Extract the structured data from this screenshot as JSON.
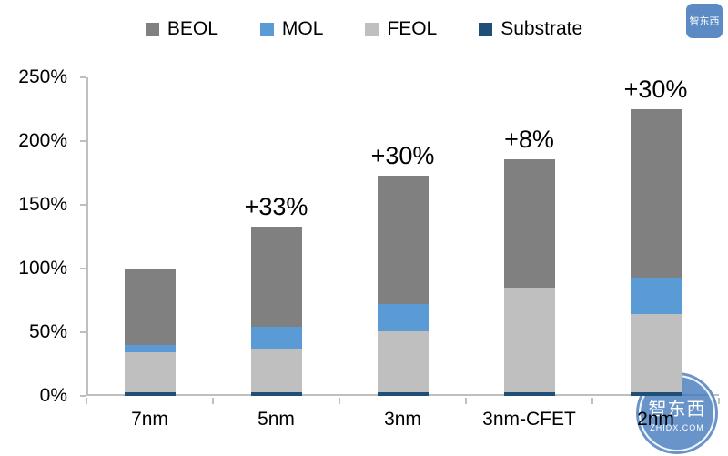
{
  "legend": {
    "items": [
      {
        "label": "BEOL",
        "series": "BEOL"
      },
      {
        "label": "MOL",
        "series": "MOL"
      },
      {
        "label": "FEOL",
        "series": "FEOL"
      },
      {
        "label": "Substrate",
        "series": "Substrate"
      }
    ]
  },
  "chart_data": {
    "type": "bar",
    "stacked": true,
    "title": "",
    "xlabel": "",
    "ylabel": "",
    "ylim": [
      0,
      250
    ],
    "grid": false,
    "legend_position": "top",
    "axis_color": "#bfbfbf",
    "y_ticks": [
      {
        "label": "0%",
        "value": 0
      },
      {
        "label": "50%",
        "value": 50
      },
      {
        "label": "100%",
        "value": 100
      },
      {
        "label": "150%",
        "value": 150
      },
      {
        "label": "200%",
        "value": 200
      },
      {
        "label": "250%",
        "value": 250
      }
    ],
    "categories": [
      "7nm",
      "5nm",
      "3nm",
      "3nm-CFET",
      "2nm"
    ],
    "series": [
      {
        "name": "Substrate",
        "color": "#1f4e79",
        "values": [
          3,
          3,
          3,
          3,
          3
        ]
      },
      {
        "name": "FEOL",
        "color": "#bfbfbf",
        "values": [
          31,
          34,
          48,
          82,
          61
        ]
      },
      {
        "name": "MOL",
        "color": "#5b9bd5",
        "values": [
          6,
          17,
          21,
          0,
          29
        ]
      },
      {
        "name": "BEOL",
        "color": "#808080",
        "values": [
          60,
          79,
          101,
          101,
          132
        ]
      }
    ],
    "totals": [
      100,
      133,
      173,
      186,
      225
    ],
    "annotations": [
      "",
      "+33%",
      "+30%",
      "+8%",
      "+30%"
    ]
  },
  "watermark": {
    "name": "智东西",
    "site": "zhidx.com"
  }
}
